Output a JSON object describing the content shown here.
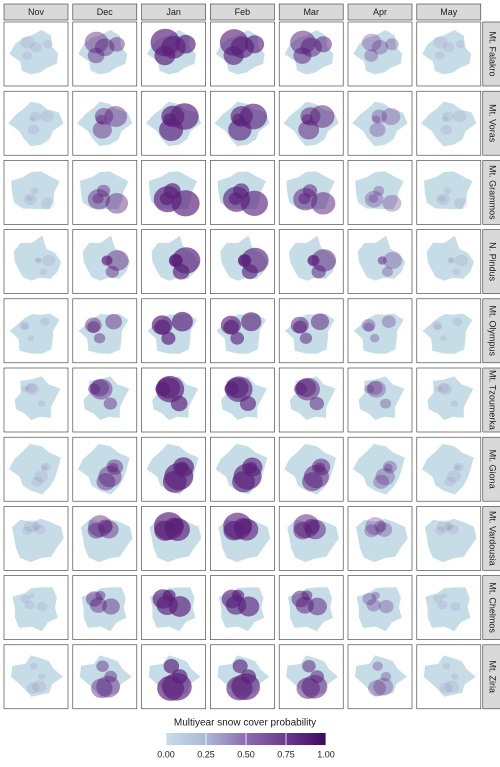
{
  "columns": [
    "Nov",
    "Dec",
    "Jan",
    "Feb",
    "Mar",
    "Apr",
    "May"
  ],
  "rows": [
    "Mt. Falakro",
    "Mt. Voras",
    "Mt. Grammos",
    "N. Pindus",
    "Mt. Olympus",
    "Mt. Tzoumerka",
    "Mt. Giona",
    "Mt. Vardousia",
    "Mt. Chelmos",
    "Mt. Ziria"
  ],
  "legend": {
    "title": "Multiyear snow cover probability",
    "range": [
      0,
      1
    ],
    "ticks": [
      {
        "value": 0,
        "label": "0.00"
      },
      {
        "value": 0.25,
        "label": "0.25"
      },
      {
        "value": 0.5,
        "label": "0.50"
      },
      {
        "value": 0.75,
        "label": "0.75"
      },
      {
        "value": 1,
        "label": "1.00"
      }
    ]
  }
}
